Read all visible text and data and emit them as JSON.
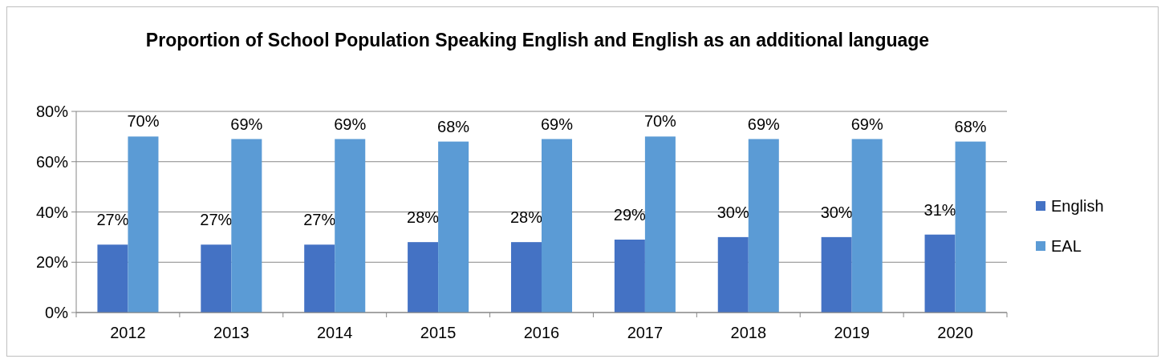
{
  "chart_data": {
    "type": "bar",
    "title": "Proportion of School Population Speaking English and English as an additional language",
    "categories": [
      "2012",
      "2013",
      "2014",
      "2015",
      "2016",
      "2017",
      "2018",
      "2019",
      "2020"
    ],
    "series": [
      {
        "name": "English",
        "color": "#4472c4",
        "values": [
          27,
          27,
          27,
          28,
          28,
          29,
          30,
          30,
          31
        ],
        "value_labels": [
          "27%",
          "27%",
          "27%",
          "28%",
          "28%",
          "29%",
          "30%",
          "30%",
          "31%"
        ]
      },
      {
        "name": "EAL",
        "color": "#5b9bd5",
        "values": [
          70,
          69,
          69,
          68,
          69,
          70,
          69,
          69,
          68
        ],
        "value_labels": [
          "70%",
          "69%",
          "69%",
          "68%",
          "69%",
          "70%",
          "69%",
          "69%",
          "68%"
        ]
      }
    ],
    "ylim": [
      0,
      80
    ],
    "yticks": [
      {
        "value": 0,
        "label": "0%"
      },
      {
        "value": 20,
        "label": "20%"
      },
      {
        "value": 40,
        "label": "40%"
      },
      {
        "value": 60,
        "label": "60%"
      },
      {
        "value": 80,
        "label": "80%"
      }
    ],
    "grid": "y",
    "legend": "right"
  }
}
